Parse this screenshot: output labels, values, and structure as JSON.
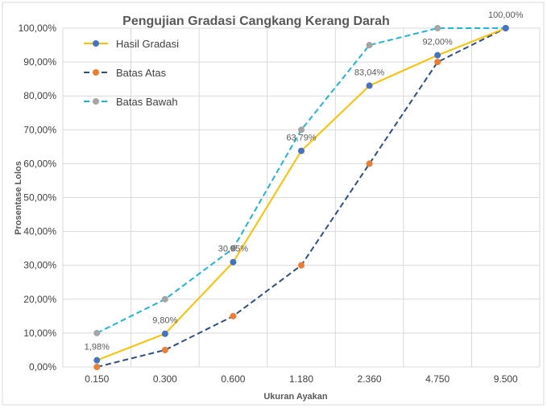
{
  "chart_data": {
    "type": "line",
    "title": "Pengujian Gradasi Cangkang Kerang Darah",
    "xlabel": "Ukuran Ayakan",
    "ylabel": "Prosentase Lolos",
    "categories": [
      "0.150",
      "0.300",
      "0.600",
      "1.180",
      "2.360",
      "4.750",
      "9.500"
    ],
    "ylim": [
      0,
      100
    ],
    "yticks": [
      "0,00%",
      "10,00%",
      "20,00%",
      "30,00%",
      "40,00%",
      "50,00%",
      "60,00%",
      "70,00%",
      "80,00%",
      "90,00%",
      "100,00%"
    ],
    "grid": true,
    "legend_position": "top-left",
    "series": [
      {
        "name": "Hasil Gradasi",
        "values": [
          1.98,
          9.8,
          30.95,
          63.79,
          83.04,
          92.0,
          100.0
        ],
        "data_labels": [
          "1,98%",
          "9,80%",
          "30,95%",
          "63,79%",
          "83,04%",
          "92,00%",
          "100,00%"
        ],
        "line_color": "#FFC000",
        "marker_color": "#4472C4",
        "dash": "solid"
      },
      {
        "name": "Batas Atas",
        "values": [
          0,
          5,
          15,
          30,
          60,
          90,
          100
        ],
        "line_color": "#2F4F7F",
        "marker_color": "#ED7D31",
        "dash": "dashed"
      },
      {
        "name": "Batas Bawah",
        "values": [
          10,
          20,
          35,
          70,
          95,
          100,
          100
        ],
        "line_color": "#1FB5D6",
        "marker_color": "#A5A5A5",
        "dash": "dashed"
      }
    ]
  }
}
